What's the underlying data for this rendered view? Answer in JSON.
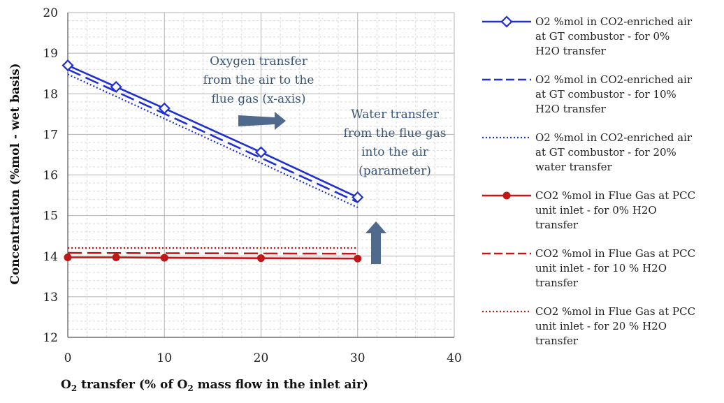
{
  "chart_data": {
    "type": "line",
    "xlabel": "O2 transfer (% of O2 mass flow in the inlet air)",
    "xlabel_parts": [
      "O",
      "2",
      " transfer (% of O",
      "2",
      " mass flow in the inlet air)"
    ],
    "ylabel": "Concentration (%mol - wet basis)",
    "xlim": [
      0,
      40
    ],
    "ylim": [
      12,
      20
    ],
    "xticks": [
      0,
      10,
      20,
      30,
      40
    ],
    "yticks": [
      12,
      13,
      14,
      15,
      16,
      17,
      18,
      19,
      20
    ],
    "grid": true,
    "legend_position": "right",
    "series": [
      {
        "name": "O2 %mol in CO2-enriched air at GT combustor - for 0% H2O transfer",
        "legend_lines": [
          "O2 %mol in CO2-enriched air",
          "at GT combustor - for 0%",
          "H2O transfer"
        ],
        "color": "#1f2fd0",
        "style": "solid",
        "marker": "diamond",
        "x": [
          0,
          5,
          10,
          20,
          30
        ],
        "y": [
          18.7,
          18.17,
          17.64,
          16.56,
          15.45
        ]
      },
      {
        "name": "O2 %mol in CO2-enriched air at GT combustor - for 10% H2O transfer",
        "legend_lines": [
          "O2 %mol in CO2-enriched air",
          "at GT combustor - for 10%",
          "H2O transfer"
        ],
        "color": "#1f2fd0",
        "style": "dashed",
        "marker": "none",
        "x": [
          0,
          30
        ],
        "y": [
          18.6,
          15.33
        ]
      },
      {
        "name": "O2 %mol in CO2-enriched air at GT combustor - for 20% water transfer",
        "legend_lines": [
          "O2 %mol in CO2-enriched air",
          "at GT combustor - for 20%",
          "water transfer"
        ],
        "color": "#1f2fd0",
        "style": "dotted",
        "marker": "none",
        "x": [
          0,
          30
        ],
        "y": [
          18.48,
          15.2
        ]
      },
      {
        "name": "CO2 %mol in Flue Gas at PCC unit inlet - for 0% H2O transfer",
        "legend_lines": [
          "CO2 %mol in Flue Gas at PCC",
          "unit inlet - for 0% H2O",
          "transfer"
        ],
        "color": "#c01818",
        "style": "solid",
        "marker": "circle",
        "x": [
          0,
          5,
          10,
          20,
          30
        ],
        "y": [
          13.97,
          13.97,
          13.96,
          13.95,
          13.94
        ]
      },
      {
        "name": "CO2 %mol in Flue Gas at PCC unit inlet - for 10 % H2O transfer",
        "legend_lines": [
          "CO2 %mol in Flue Gas at PCC",
          "unit inlet - for 10 % H2O",
          "transfer"
        ],
        "color": "#c01818",
        "style": "dashed",
        "marker": "none",
        "x": [
          0,
          30
        ],
        "y": [
          14.08,
          14.06
        ]
      },
      {
        "name": "CO2 %mol in Flue Gas at PCC unit inlet - for 20 % H2O transfer",
        "legend_lines": [
          "CO2 %mol in Flue Gas at PCC",
          "unit inlet - for 20 % H2O",
          "transfer"
        ],
        "color": "#c01818",
        "style": "dotted",
        "marker": "none",
        "x": [
          0,
          30
        ],
        "y": [
          14.2,
          14.2
        ]
      }
    ],
    "annotations": [
      {
        "lines": [
          "Oxygen transfer",
          "from the air to the",
          "flue gas  (x-axis)"
        ]
      },
      {
        "lines": [
          "Water transfer",
          "from the flue gas",
          "into the air",
          "(parameter)"
        ]
      }
    ],
    "arrows": [
      {
        "direction": "right",
        "color": "#4f6a8c"
      },
      {
        "direction": "up",
        "color": "#4f6a8c"
      }
    ]
  }
}
